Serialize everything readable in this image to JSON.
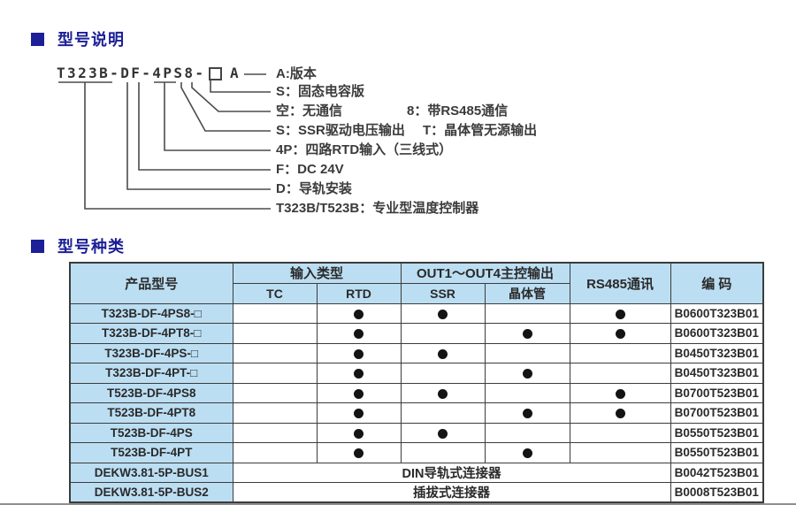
{
  "accent_color": "#1c1f96",
  "table_header_bg": "#bcdef2",
  "sections": {
    "model_description_title": "型号说明",
    "model_types_title": "型号种类"
  },
  "diagram": {
    "model_prefix": "T323B-DF-4PS8-",
    "placeholder_box": "□",
    "model_suffix": "A",
    "labels": [
      {
        "text": "A:版本"
      },
      {
        "text": "S：固态电容版"
      },
      {
        "text": "空：无通信",
        "text2": "8：带RS485通信"
      },
      {
        "text": "S：SSR驱动电压输出",
        "text2": "T：晶体管无源输出"
      },
      {
        "text": "4P：四路RTD输入（三线式）"
      },
      {
        "text": "F：DC 24V"
      },
      {
        "text": "D：导轨安装"
      },
      {
        "text": "T323B/T523B：专业型温度控制器"
      }
    ]
  },
  "table": {
    "header": {
      "product": "产品型号",
      "input_group": "输入类型",
      "out_group": "OUT1～OUT4主控输出",
      "rs485": "RS485通讯",
      "code": "编 码",
      "sub": [
        "TC",
        "RTD",
        "SSR",
        "晶体管"
      ]
    },
    "rows": [
      {
        "model": "T323B-DF-4PS8-□",
        "tc": false,
        "rtd": true,
        "ssr": true,
        "transistor": false,
        "rs485": true,
        "code": "B0600T323B01"
      },
      {
        "model": "T323B-DF-4PT8-□",
        "tc": false,
        "rtd": true,
        "ssr": false,
        "transistor": true,
        "rs485": true,
        "code": "B0600T323B01"
      },
      {
        "model": "T323B-DF-4PS-□",
        "tc": false,
        "rtd": true,
        "ssr": true,
        "transistor": false,
        "rs485": false,
        "code": "B0450T323B01"
      },
      {
        "model": "T323B-DF-4PT-□",
        "tc": false,
        "rtd": true,
        "ssr": false,
        "transistor": true,
        "rs485": false,
        "code": "B0450T323B01"
      },
      {
        "model": "T523B-DF-4PS8",
        "tc": false,
        "rtd": true,
        "ssr": true,
        "transistor": false,
        "rs485": true,
        "code": "B0700T523B01"
      },
      {
        "model": "T523B-DF-4PT8",
        "tc": false,
        "rtd": true,
        "ssr": false,
        "transistor": true,
        "rs485": true,
        "code": "B0700T523B01"
      },
      {
        "model": "T523B-DF-4PS",
        "tc": false,
        "rtd": true,
        "ssr": true,
        "transistor": false,
        "rs485": false,
        "code": "B0550T523B01"
      },
      {
        "model": "T523B-DF-4PT",
        "tc": false,
        "rtd": true,
        "ssr": false,
        "transistor": true,
        "rs485": false,
        "code": "B0550T523B01"
      },
      {
        "model": "DEKW3.81-5P-BUS1",
        "merged": "DIN导轨式连接器",
        "code": "B0042T523B01"
      },
      {
        "model": "DEKW3.81-5P-BUS2",
        "merged": "插拔式连接器",
        "code": "B0008T523B01"
      }
    ]
  }
}
